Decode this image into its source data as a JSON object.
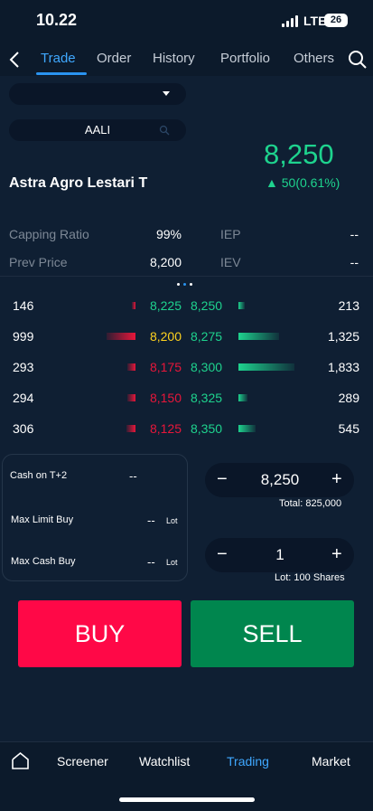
{
  "status": {
    "time": "10.22",
    "network": "LTE",
    "battery": "26"
  },
  "tabs": [
    {
      "label": "Trade",
      "active": true
    },
    {
      "label": "Order",
      "active": false
    },
    {
      "label": "History",
      "active": false
    },
    {
      "label": "Portfolio",
      "active": false
    },
    {
      "label": "Others",
      "active": false
    }
  ],
  "stock": {
    "code": "AALI",
    "name": "Astra Agro Lestari T",
    "last_price": "8,250",
    "change": "▲ 50(0.61%)",
    "color_up": "#1ed38e",
    "color_down": "#e8163a"
  },
  "info": {
    "capping_ratio_label": "Capping Ratio",
    "capping_ratio_value": "99%",
    "iep_label": "IEP",
    "iep_value": "--",
    "prev_price_label": "Prev Price",
    "prev_price_value": "8,200",
    "iev_label": "IEV",
    "iev_value": "--"
  },
  "orderbook": [
    {
      "bid_lot": "146",
      "bid": "8,225",
      "ask": "8,250",
      "ask_lot": "213",
      "bid_level": 0.12,
      "ask_level": 0.12,
      "bid_color": "#1ed38e"
    },
    {
      "bid_lot": "999",
      "bid": "8,200",
      "ask": "8,275",
      "ask_lot": "1,325",
      "bid_level": 1.0,
      "ask_level": 0.72,
      "bid_color": "#ffd21f"
    },
    {
      "bid_lot": "293",
      "bid": "8,175",
      "ask": "8,300",
      "ask_lot": "1,833",
      "bid_level": 0.29,
      "ask_level": 1.0,
      "bid_color": "#e8163a"
    },
    {
      "bid_lot": "294",
      "bid": "8,150",
      "ask": "8,325",
      "ask_lot": "289",
      "bid_level": 0.29,
      "ask_level": 0.16,
      "bid_color": "#e8163a"
    },
    {
      "bid_lot": "306",
      "bid": "8,125",
      "ask": "8,350",
      "ask_lot": "545",
      "bid_level": 0.3,
      "ask_level": 0.3,
      "bid_color": "#e8163a"
    }
  ],
  "account": {
    "cash_label": "Cash on T+2",
    "cash_value": "--",
    "max_limit_label": "Max Limit Buy",
    "max_limit_value": "--",
    "max_limit_unit": "Lot",
    "max_cash_label": "Max Cash Buy",
    "max_cash_value": "--",
    "max_cash_unit": "Lot"
  },
  "order": {
    "price": "8,250",
    "total": "Total: 825,000",
    "lot": "1",
    "lot_info": "Lot: 100 Shares",
    "minus": "−",
    "plus": "+"
  },
  "actions": {
    "buy": "BUY",
    "sell": "SELL"
  },
  "bottom_nav": [
    {
      "label": "Screener",
      "active": false
    },
    {
      "label": "Watchlist",
      "active": false
    },
    {
      "label": "Trading",
      "active": true
    },
    {
      "label": "Market",
      "active": false
    }
  ]
}
